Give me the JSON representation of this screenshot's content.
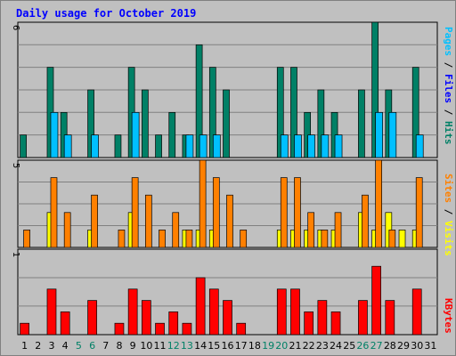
{
  "chart_data": {
    "type": "bar",
    "title": "Daily usage for October 2019",
    "x": [
      "1",
      "2",
      "3",
      "4",
      "5",
      "6",
      "7",
      "8",
      "9",
      "10",
      "11",
      "12",
      "13",
      "14",
      "15",
      "16",
      "17",
      "18",
      "19",
      "20",
      "21",
      "22",
      "23",
      "24",
      "25",
      "26",
      "27",
      "28",
      "29",
      "30",
      "31"
    ],
    "weekend_days": [
      "5",
      "6",
      "12",
      "13",
      "19",
      "20",
      "26",
      "27"
    ],
    "panels": [
      {
        "name": "hits_files_pages",
        "ymax_label": "6",
        "ylim": [
          0,
          6
        ],
        "side_labels": [
          "Pages",
          "Files",
          "Hits"
        ],
        "series": [
          {
            "name": "Hits",
            "color": "#008066",
            "values": [
              1,
              0,
              4,
              2,
              0,
              3,
              0,
              1,
              4,
              3,
              1,
              2,
              1,
              5,
              4,
              3,
              0,
              0,
              0,
              4,
              4,
              2,
              3,
              2,
              0,
              3,
              6,
              3,
              0,
              4,
              0
            ]
          },
          {
            "name": "Files",
            "color": "#00c0ff",
            "values": [
              0,
              0,
              2,
              1,
              0,
              1,
              0,
              0,
              2,
              0,
              0,
              0,
              1,
              1,
              1,
              0,
              0,
              0,
              0,
              1,
              1,
              1,
              1,
              1,
              0,
              0,
              2,
              2,
              0,
              1,
              0
            ]
          },
          {
            "name": "Pages",
            "color": "#00c0ff",
            "values": [
              0,
              0,
              0,
              0,
              0,
              0,
              0,
              0,
              0,
              0,
              0,
              0,
              0,
              0,
              0,
              0,
              0,
              0,
              0,
              0,
              0,
              0,
              0,
              0,
              0,
              0,
              0,
              0,
              0,
              0,
              0
            ]
          }
        ]
      },
      {
        "name": "visits_sites",
        "ymax_label": "5",
        "ylim": [
          0,
          5
        ],
        "side_labels": [
          "Sites",
          "Visits"
        ],
        "series": [
          {
            "name": "Visits",
            "color": "#ff8000",
            "values": [
              1,
              0,
              4,
              2,
              0,
              3,
              0,
              1,
              4,
              3,
              1,
              2,
              1,
              5,
              4,
              3,
              1,
              0,
              0,
              4,
              4,
              2,
              1,
              2,
              0,
              3,
              5,
              1,
              0,
              4,
              0
            ]
          },
          {
            "name": "Sites",
            "color": "#ffff00",
            "values": [
              0,
              0,
              2,
              0,
              0,
              1,
              0,
              0,
              2,
              0,
              0,
              0,
              1,
              1,
              1,
              0,
              0,
              0,
              0,
              1,
              1,
              1,
              1,
              1,
              0,
              2,
              1,
              2,
              1,
              1,
              0
            ]
          }
        ]
      },
      {
        "name": "kbytes",
        "ymax_label": "1",
        "ylim": [
          0,
          1.5
        ],
        "side_labels": [
          "KBytes"
        ],
        "series": [
          {
            "name": "KBytes",
            "color": "#ff0000",
            "values": [
              0.2,
              0,
              0.8,
              0.4,
              0,
              0.6,
              0,
              0.2,
              0.8,
              0.6,
              0.2,
              0.4,
              0.2,
              1.0,
              0.8,
              0.6,
              0.2,
              0,
              0,
              0.8,
              0.8,
              0.4,
              0.6,
              0.4,
              0,
              0.6,
              1.2,
              0.6,
              0,
              0.8,
              0
            ]
          }
        ]
      }
    ],
    "colors": {
      "title": "#0000ff",
      "day_weekday": "#000000",
      "day_weekend": "#008066",
      "pages": "#00c0ff",
      "files": "#0000ff",
      "hits": "#008066",
      "sites": "#ff8000",
      "visits": "#ffff00",
      "kbytes": "#ff0000",
      "background": "#c0c0c0"
    }
  }
}
